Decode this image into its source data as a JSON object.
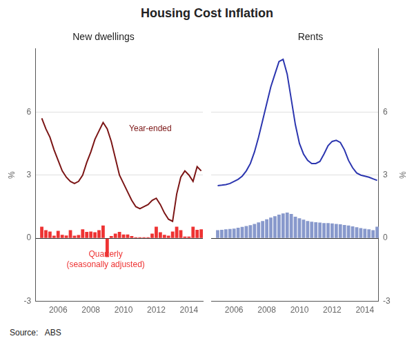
{
  "title": "Housing Cost Inflation",
  "source": "Source:   ABS",
  "chart_data": [
    {
      "type": "bar",
      "subtitle": "New dwellings",
      "ylabel": "%",
      "x": [
        2005.0,
        2005.25,
        2005.5,
        2005.75,
        2006.0,
        2006.25,
        2006.5,
        2006.75,
        2007.0,
        2007.25,
        2007.5,
        2007.75,
        2008.0,
        2008.25,
        2008.5,
        2008.75,
        2009.0,
        2009.25,
        2009.5,
        2009.75,
        2010.0,
        2010.25,
        2010.5,
        2010.75,
        2011.0,
        2011.25,
        2011.5,
        2011.75,
        2012.0,
        2012.25,
        2012.5,
        2012.75,
        2013.0,
        2013.25,
        2013.5,
        2013.75,
        2014.0,
        2014.25,
        2014.5,
        2014.75
      ],
      "series": [
        {
          "type": "bar",
          "color": "#EE3333",
          "values": [
            0.55,
            0.38,
            0.32,
            0.12,
            0.35,
            0.16,
            0.13,
            0.38,
            0.12,
            0.15,
            0.42,
            0.3,
            0.32,
            0.28,
            0.38,
            0.6,
            -0.9,
            0.1,
            0.22,
            0.3,
            0.18,
            0.18,
            0.1,
            0.05,
            0.05,
            0.05,
            0.05,
            0.22,
            0.55,
            0.28,
            0.16,
            0.12,
            0.32,
            0.55,
            0.38,
            0.08,
            0.08,
            0.55,
            0.4,
            0.42
          ]
        },
        {
          "type": "line",
          "color": "#7B1515",
          "values": [
            5.7,
            5.2,
            4.8,
            4.2,
            3.7,
            3.2,
            2.9,
            2.7,
            2.6,
            2.7,
            3.0,
            3.6,
            4.1,
            4.7,
            5.1,
            5.5,
            5.2,
            4.6,
            3.8,
            3.0,
            2.6,
            2.2,
            1.8,
            1.5,
            1.4,
            1.5,
            1.6,
            1.8,
            1.9,
            1.6,
            1.2,
            0.9,
            0.8,
            2.1,
            2.9,
            3.2,
            3.0,
            2.7,
            3.4,
            3.2
          ]
        }
      ],
      "annotations": [
        {
          "text": "Year-ended",
          "color": "#7B1515"
        },
        {
          "text": "Quarterly\n(seasonally adjusted)",
          "color": "#EE3333"
        }
      ],
      "xlim": [
        2004.6,
        2014.85
      ],
      "xticks": [
        2006,
        2008,
        2010,
        2012,
        2014
      ],
      "ylim": [
        -3,
        9
      ],
      "yticks": [
        -3,
        0,
        3,
        6
      ],
      "grid": true
    },
    {
      "type": "bar",
      "subtitle": "Rents",
      "ylabel": "%",
      "x": [
        2005.0,
        2005.25,
        2005.5,
        2005.75,
        2006.0,
        2006.25,
        2006.5,
        2006.75,
        2007.0,
        2007.25,
        2007.5,
        2007.75,
        2008.0,
        2008.25,
        2008.5,
        2008.75,
        2009.0,
        2009.25,
        2009.5,
        2009.75,
        2010.0,
        2010.25,
        2010.5,
        2010.75,
        2011.0,
        2011.25,
        2011.5,
        2011.75,
        2012.0,
        2012.25,
        2012.5,
        2012.75,
        2013.0,
        2013.25,
        2013.5,
        2013.75,
        2014.0,
        2014.25,
        2014.5,
        2014.75
      ],
      "series": [
        {
          "type": "bar",
          "color": "#8899CC",
          "values": [
            0.38,
            0.4,
            0.42,
            0.44,
            0.46,
            0.5,
            0.54,
            0.58,
            0.62,
            0.68,
            0.75,
            0.82,
            0.9,
            0.98,
            1.05,
            1.12,
            1.18,
            1.22,
            1.15,
            1.02,
            0.95,
            0.88,
            0.82,
            0.78,
            0.76,
            0.74,
            0.72,
            0.72,
            0.7,
            0.68,
            0.66,
            0.63,
            0.6,
            0.56,
            0.52,
            0.48,
            0.45,
            0.42,
            0.38,
            0.55
          ]
        },
        {
          "type": "line",
          "color": "#2B35AF",
          "values": [
            2.5,
            2.52,
            2.55,
            2.6,
            2.7,
            2.8,
            2.95,
            3.2,
            3.55,
            4.1,
            4.8,
            5.6,
            6.4,
            7.2,
            7.8,
            8.4,
            8.5,
            7.8,
            6.6,
            5.4,
            4.5,
            4.0,
            3.7,
            3.55,
            3.55,
            3.65,
            4.0,
            4.4,
            4.6,
            4.65,
            4.55,
            4.2,
            3.7,
            3.35,
            3.1,
            3.0,
            2.95,
            2.9,
            2.82,
            2.75
          ]
        }
      ],
      "xlim": [
        2004.6,
        2014.85
      ],
      "xticks": [
        2006,
        2008,
        2010,
        2012,
        2014
      ],
      "ylim": [
        -3,
        9
      ],
      "yticks": [
        -3,
        0,
        3,
        6
      ],
      "grid": true
    }
  ]
}
